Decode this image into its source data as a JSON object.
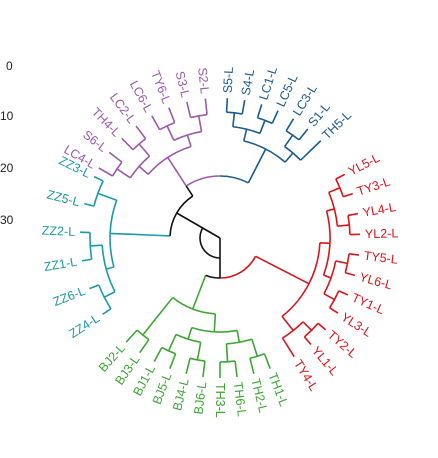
{
  "scale": {
    "labels": [
      "0",
      "10",
      "20",
      "30"
    ]
  },
  "colors": {
    "purple": "#9a5aa8",
    "blue": "#1a5a8c",
    "red": "#d9141b",
    "green": "#3da634",
    "cyan": "#1a9aa8",
    "black": "#111111"
  },
  "tree": {
    "groups": [
      {
        "name": "purple",
        "color": "#9a5aa8",
        "leaves": [
          "LC4-L",
          "S6-L",
          "TH4-L",
          "LC2-L",
          "LC6-L",
          "TY6-L",
          "S3-L",
          "S2-L"
        ]
      },
      {
        "name": "blue",
        "color": "#1a5a8c",
        "leaves": [
          "S5-L",
          "S4-L",
          "LC1-L",
          "LC5-L",
          "LC3-L",
          "S1-L",
          "TH5-L"
        ]
      },
      {
        "name": "red",
        "color": "#d9141b",
        "leaves": [
          "YL5-L",
          "TY3-L",
          "YL4-L",
          "YL2-L",
          "TY5-L",
          "YL6-L",
          "TY1-L",
          "YL3-L",
          "TY2-L",
          "YL1-L",
          "TY4-L"
        ]
      },
      {
        "name": "green",
        "color": "#3da634",
        "leaves": [
          "TH1-L",
          "TH2-L",
          "TH6-L",
          "TH3-L",
          "BJ6-L",
          "BJ4-L",
          "BJ5-L",
          "BJ1-L",
          "BJ3-L",
          "BJ2-L"
        ]
      },
      {
        "name": "cyan",
        "color": "#1a9aa8",
        "leaves": [
          "ZZ4-L",
          "ZZ6-L",
          "ZZ1-L",
          "ZZ2-L",
          "ZZ5-L",
          "ZZ3-L"
        ]
      }
    ]
  }
}
